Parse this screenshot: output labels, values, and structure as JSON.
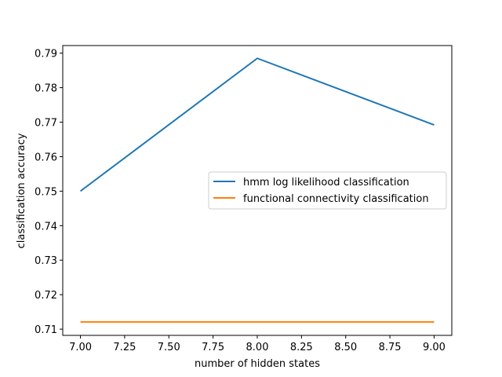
{
  "chart_data": {
    "type": "line",
    "title": "",
    "xlabel": "number of hidden states",
    "ylabel": "classification accuracy",
    "xlim": [
      6.9,
      9.1
    ],
    "ylim": [
      0.7082,
      0.7922
    ],
    "xticks": [
      7.0,
      7.25,
      7.5,
      7.75,
      8.0,
      8.25,
      8.5,
      8.75,
      9.0
    ],
    "xtick_labels": [
      "7.00",
      "7.25",
      "7.50",
      "7.75",
      "8.00",
      "8.25",
      "8.50",
      "8.75",
      "9.00"
    ],
    "yticks": [
      0.71,
      0.72,
      0.73,
      0.74,
      0.75,
      0.76,
      0.77,
      0.78,
      0.79
    ],
    "ytick_labels": [
      "0.71",
      "0.72",
      "0.73",
      "0.74",
      "0.75",
      "0.76",
      "0.77",
      "0.78",
      "0.79"
    ],
    "grid": false,
    "legend_position": "center-right",
    "series": [
      {
        "name": "hmm log likelihood classification",
        "color": "#1f77b4",
        "x": [
          7,
          8,
          9
        ],
        "y": [
          0.75,
          0.7885,
          0.7692
        ]
      },
      {
        "name": "functional connectivity classification",
        "color": "#ff7f0e",
        "x": [
          7,
          8,
          9
        ],
        "y": [
          0.7121,
          0.7121,
          0.7121
        ]
      }
    ]
  }
}
